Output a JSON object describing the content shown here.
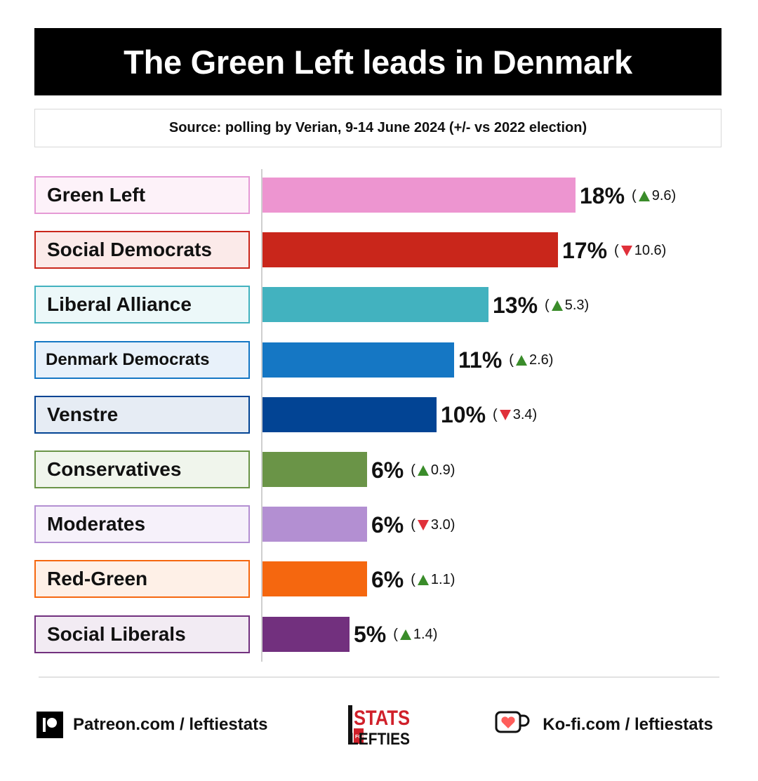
{
  "header": {
    "title": "The Green Left leads in Denmark",
    "subtitle": "Source: polling by Verian, 9-14 June 2024 (+/- vs 2022 election)"
  },
  "chart_data": {
    "type": "bar",
    "orientation": "horizontal",
    "title": "The Green Left leads in Denmark",
    "subtitle": "Source: polling by Verian, 9-14 June 2024 (+/- vs 2022 election)",
    "unit": "%",
    "max_value": 18,
    "bars": [
      {
        "party": "Green Left",
        "value": 18,
        "value_label": "18%",
        "change": "9.6",
        "direction": "up",
        "color": "#ed95d0",
        "box_border": "#e59ad6",
        "box_bg": "#fdf2f9"
      },
      {
        "party": "Social Democrats",
        "value": 17,
        "value_label": "17%",
        "change": "10.6",
        "direction": "down",
        "color": "#c9261b",
        "box_border": "#c9261b",
        "box_bg": "#fbeae9"
      },
      {
        "party": "Liberal Alliance",
        "value": 13,
        "value_label": "13%",
        "change": "5.3",
        "direction": "up",
        "color": "#42b2bf",
        "box_border": "#42b2bf",
        "box_bg": "#ecf8f9"
      },
      {
        "party": "Denmark Democrats",
        "value": 11,
        "value_label": "11%",
        "change": "2.6",
        "direction": "up",
        "color": "#1577c4",
        "box_border": "#1577c4",
        "box_bg": "#e8f1fa"
      },
      {
        "party": "Venstre",
        "value": 10,
        "value_label": "10%",
        "change": "3.4",
        "direction": "down",
        "color": "#024494",
        "box_border": "#024494",
        "box_bg": "#e6ecf4"
      },
      {
        "party": "Conservatives",
        "value": 6,
        "value_label": "6%",
        "change": "0.9",
        "direction": "up",
        "color": "#6a9447",
        "box_border": "#6a9447",
        "box_bg": "#f0f5ec"
      },
      {
        "party": "Moderates",
        "value": 6,
        "value_label": "6%",
        "change": "3.0",
        "direction": "down",
        "color": "#b38fd2",
        "box_border": "#b38fd2",
        "box_bg": "#f6f1fa"
      },
      {
        "party": "Red-Green",
        "value": 6,
        "value_label": "6%",
        "change": "1.1",
        "direction": "up",
        "color": "#f5670f",
        "box_border": "#f5670f",
        "box_bg": "#fef0e7"
      },
      {
        "party": "Social Liberals",
        "value": 5,
        "value_label": "5%",
        "change": "1.4",
        "direction": "up",
        "color": "#72307e",
        "box_border": "#72307e",
        "box_bg": "#f2ebf3"
      }
    ]
  },
  "footer": {
    "patreon": "Patreon.com / leftiestats",
    "kofi": "Ko-fi.com / leftiestats",
    "logo_top": "STATS",
    "logo_small": "FOR",
    "logo_bottom": "LEFTIES"
  },
  "icons": {
    "up": "triangle-up-icon",
    "down": "triangle-down-icon",
    "patreon": "patreon-icon",
    "kofi": "kofi-cup-icon"
  },
  "colors": {
    "up_arrow": "#3a8c2a",
    "down_arrow": "#e0303a",
    "logo_red": "#d0202a"
  }
}
